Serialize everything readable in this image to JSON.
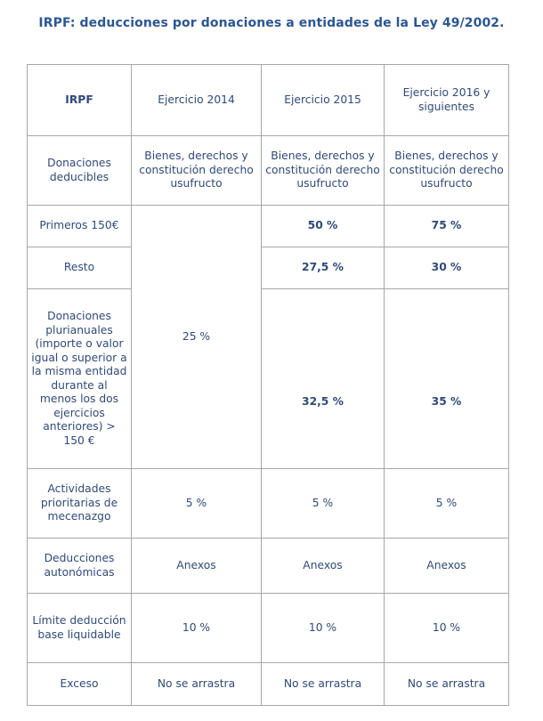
{
  "title": "IRPF: deducciones por donaciones a entidades de la Ley 49/2002.",
  "table": {
    "header": {
      "label": "IRPF",
      "col_2014": "Ejercicio 2014",
      "col_2015": "Ejercicio 2015",
      "col_2016": "Ejercicio 2016 y siguientes"
    },
    "donaciones_deducibles": {
      "label": "Donaciones deducibles",
      "v2014": "Bienes, derechos y constitución derecho usufructo",
      "v2015": "Bienes, derechos y constitución derecho usufructo",
      "v2016": "Bienes, derechos y constitución derecho usufructo"
    },
    "primeros_150": {
      "label": "Primeros 150€",
      "v2015": "50 %",
      "v2016": "75 %"
    },
    "resto": {
      "label": "Resto",
      "v2015": "27,5 %",
      "v2016": "30 %"
    },
    "merged_2014": "25 %",
    "plurianuales": {
      "label": "Donaciones plurianuales (importe o valor igual o superior a la misma entidad durante al menos los dos ejercicios anteriores) > 150 €",
      "v2015": "32,5 %",
      "v2016": "35 %"
    },
    "mecenazgo": {
      "label": "Actividades prioritarias de mecenazgo",
      "v2014": "5 %",
      "v2015": "5 %",
      "v2016": "5 %"
    },
    "autonomicas": {
      "label": "Deducciones autonómicas",
      "v2014": "Anexos",
      "v2015": "Anexos",
      "v2016": "Anexos"
    },
    "limite": {
      "label": "Límite deducción base liquidable",
      "v2014": "10 %",
      "v2015": "10 %",
      "v2016": "10 %"
    },
    "exceso": {
      "label": "Exceso",
      "v2014": "No se arrastra",
      "v2015": "No se arrastra",
      "v2016": "No se arrastra"
    }
  }
}
